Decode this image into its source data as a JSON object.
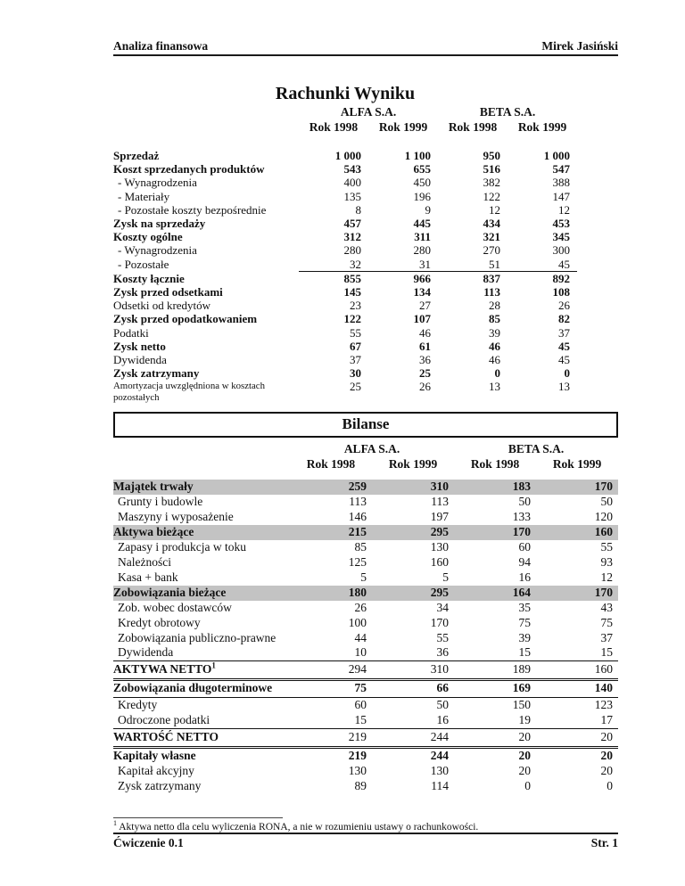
{
  "page": {
    "header": {
      "left": "Analiza finansowa",
      "right": "Mirek Jasiński"
    },
    "footer": {
      "left": "Ćwiczenie 0.1",
      "right": "Str. 1"
    },
    "footnote": {
      "marker": "1",
      "text": "Aktywa netto dla celu wyliczenia RONA, a nie w rozumieniu ustawy o rachunkowości."
    }
  },
  "colors": {
    "row_highlight": "#c3c3c3",
    "text": "#111111"
  },
  "income_statement": {
    "title": "Rachunki Wyniku",
    "groups": [
      "ALFA S.A.",
      "BETA S.A."
    ],
    "col_headers": [
      "Rok 1998",
      "Rok 1999",
      "Rok 1998",
      "Rok 1999"
    ],
    "rows": [
      {
        "label": "Sprzedaż",
        "b": true,
        "values": [
          "1 000",
          "1 100",
          "950",
          "1 000"
        ]
      },
      {
        "label": "Koszt sprzedanych produktów",
        "b": true,
        "values": [
          "543",
          "655",
          "516",
          "547"
        ]
      },
      {
        "label": "- Wynagrodzenia",
        "ind": true,
        "values": [
          "400",
          "450",
          "382",
          "388"
        ]
      },
      {
        "label": "- Materiały",
        "ind": true,
        "values": [
          "135",
          "196",
          "122",
          "147"
        ]
      },
      {
        "label": "- Pozostałe koszty bezpośrednie",
        "ind": true,
        "values": [
          "8",
          "9",
          "12",
          "12"
        ]
      },
      {
        "label": "Zysk na sprzedaży",
        "b": true,
        "values": [
          "457",
          "445",
          "434",
          "453"
        ]
      },
      {
        "label": "Koszty ogólne",
        "b": true,
        "values": [
          "312",
          "311",
          "321",
          "345"
        ]
      },
      {
        "label": "- Wynagrodzenia",
        "ind": true,
        "values": [
          "280",
          "280",
          "270",
          "300"
        ]
      },
      {
        "label": "- Pozostałe",
        "ind": true,
        "values": [
          "32",
          "31",
          "51",
          "45"
        ]
      },
      {
        "label": "Koszty łącznie",
        "b": true,
        "ra": true,
        "values": [
          "855",
          "966",
          "837",
          "892"
        ]
      },
      {
        "label": "Zysk przed odsetkami",
        "b": true,
        "values": [
          "145",
          "134",
          "113",
          "108"
        ]
      },
      {
        "label": "Odsetki od kredytów",
        "values": [
          "23",
          "27",
          "28",
          "26"
        ]
      },
      {
        "label": "Zysk przed opodatkowaniem",
        "b": true,
        "values": [
          "122",
          "107",
          "85",
          "82"
        ]
      },
      {
        "label": "Podatki",
        "values": [
          "55",
          "46",
          "39",
          "37"
        ]
      },
      {
        "label": "Zysk netto",
        "b": true,
        "values": [
          "67",
          "61",
          "46",
          "45"
        ]
      },
      {
        "label": "Dywidenda",
        "values": [
          "37",
          "36",
          "46",
          "45"
        ]
      },
      {
        "label": "Zysk zatrzymany",
        "b": true,
        "values": [
          "30",
          "25",
          "0",
          "0"
        ]
      },
      {
        "label": "Amortyzacja uwzględniona w kosztach pozostałych",
        "sm": true,
        "values": [
          "25",
          "26",
          "13",
          "13"
        ]
      }
    ]
  },
  "balance_sheet": {
    "title": "Bilanse",
    "groups": [
      "ALFA S.A.",
      "BETA S.A."
    ],
    "col_headers": [
      "Rok 1998",
      "Rok 1999",
      "Rok 1998",
      "Rok 1999"
    ],
    "rows": [
      {
        "label": "Majątek trwały",
        "b": true,
        "gray": true,
        "values": [
          "259",
          "310",
          "183",
          "170"
        ]
      },
      {
        "label": "Grunty i budowle",
        "ind": true,
        "values": [
          "113",
          "113",
          "50",
          "50"
        ]
      },
      {
        "label": "Maszyny i wyposażenie",
        "ind": true,
        "values": [
          "146",
          "197",
          "133",
          "120"
        ]
      },
      {
        "label": "Aktywa bieżące",
        "b": true,
        "gray": true,
        "values": [
          "215",
          "295",
          "170",
          "160"
        ]
      },
      {
        "label": "Zapasy i produkcja w toku",
        "ind": true,
        "values": [
          "85",
          "130",
          "60",
          "55"
        ]
      },
      {
        "label": "Należności",
        "ind": true,
        "values": [
          "125",
          "160",
          "94",
          "93"
        ]
      },
      {
        "label": "Kasa + bank",
        "ind": true,
        "values": [
          "5",
          "5",
          "16",
          "12"
        ]
      },
      {
        "label": "Zobowiązania bieżące",
        "b": true,
        "gray": true,
        "values": [
          "180",
          "295",
          "164",
          "170"
        ]
      },
      {
        "label": "Zob. wobec dostawców",
        "ind": true,
        "values": [
          "26",
          "34",
          "35",
          "43"
        ]
      },
      {
        "label": "Kredyt obrotowy",
        "ind": true,
        "values": [
          "100",
          "170",
          "75",
          "75"
        ]
      },
      {
        "label": "Zobowiązania publiczno-prawne",
        "ind": true,
        "values": [
          "44",
          "55",
          "39",
          "37"
        ]
      },
      {
        "label": "Dywidenda",
        "ind": true,
        "values": [
          "10",
          "36",
          "15",
          "15"
        ]
      },
      {
        "label": "AKTYWA NETTO",
        "sup": "1",
        "bl": true,
        "bt": true,
        "bbd": true,
        "values": [
          "294",
          "310",
          "189",
          "160"
        ]
      },
      {
        "label": "Zobowiązania długoterminowe",
        "b": true,
        "bb": true,
        "values": [
          "75",
          "66",
          "169",
          "140"
        ]
      },
      {
        "label": "Kredyty",
        "ind": true,
        "values": [
          "60",
          "50",
          "150",
          "123"
        ]
      },
      {
        "label": "Odroczone podatki",
        "ind": true,
        "values": [
          "15",
          "16",
          "19",
          "17"
        ]
      },
      {
        "label": "WARTOŚĆ NETTO",
        "bl": true,
        "bt": true,
        "bbd": true,
        "values": [
          "219",
          "244",
          "20",
          "20"
        ]
      },
      {
        "label": "Kapitały własne",
        "b": true,
        "values": [
          "219",
          "244",
          "20",
          "20"
        ]
      },
      {
        "label": "Kapitał akcyjny",
        "ind": true,
        "values": [
          "130",
          "130",
          "20",
          "20"
        ]
      },
      {
        "label": "Zysk zatrzymany",
        "ind": true,
        "values": [
          "89",
          "114",
          "0",
          "0"
        ]
      }
    ]
  }
}
